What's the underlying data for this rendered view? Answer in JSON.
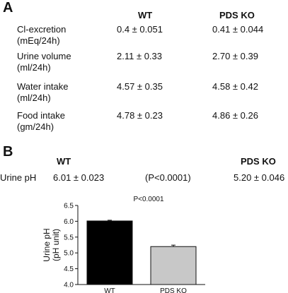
{
  "panel_a": {
    "label": "A",
    "col_wt": "WT",
    "col_ko": "PDS KO",
    "rows": [
      {
        "name": "Cl-excretion",
        "unit": "(mEq/24h)",
        "wt": "0.4 ± 0.051",
        "ko": "0.41 ± 0.044"
      },
      {
        "name": "Urine volume",
        "unit": "(ml/24h)",
        "wt": "2.11 ± 0.33",
        "ko": "2.70 ± 0.39"
      },
      {
        "name": "Water intake",
        "unit": "(ml/24h)",
        "wt": "4.57 ± 0.35",
        "ko": "4.58 ± 0.42"
      },
      {
        "name": "Food intake",
        "unit": "(gm/24h)",
        "wt": "4.78 ± 0.23",
        "ko": "4.86 ± 0.26"
      }
    ]
  },
  "panel_b": {
    "label": "B",
    "col_wt": "WT",
    "col_ko": "PDS KO",
    "row_label": "Urine pH",
    "wt": "6.01 ± 0.023",
    "p": "(P<0.0001)",
    "ko": "5.20 ± 0.046"
  },
  "chart_data": {
    "type": "bar",
    "categories": [
      "WT",
      "PDS KO"
    ],
    "values": [
      6.01,
      5.2
    ],
    "errors": [
      0.023,
      0.046
    ],
    "bar_colors": [
      "#000000",
      "#c8c8c8"
    ],
    "ylabel": "Urine pH\n(pH unit)",
    "ylim": [
      4.0,
      6.5
    ],
    "yticks": [
      "4.0",
      "4.5",
      "5.0",
      "5.5",
      "6.0",
      "6.5"
    ],
    "annotation": "P<0.0001"
  }
}
